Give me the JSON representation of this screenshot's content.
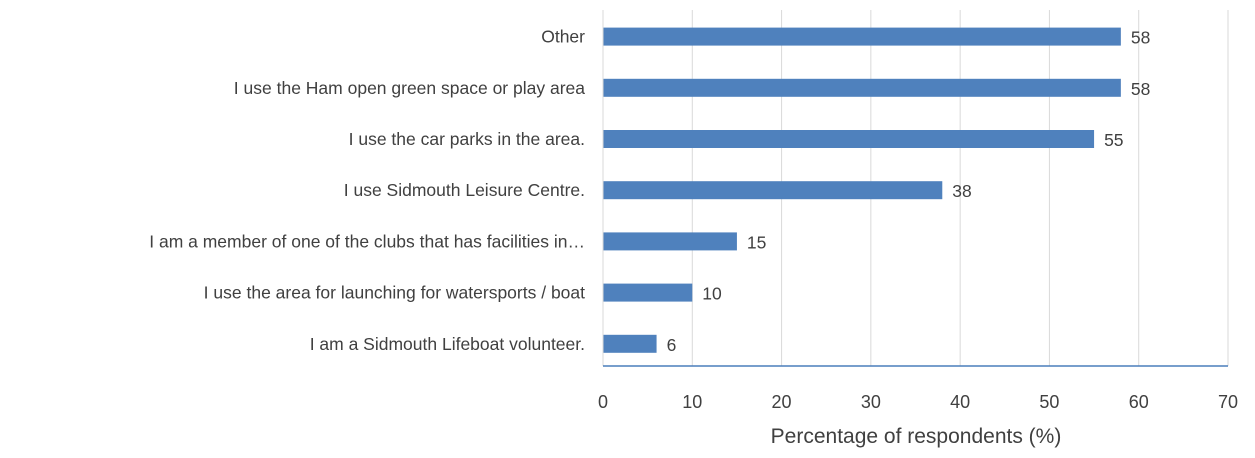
{
  "chart_data": {
    "type": "bar",
    "orientation": "horizontal",
    "categories": [
      "Other",
      "I use the Ham open green space or play area",
      "I use the car parks in the area.",
      "I use Sidmouth Leisure Centre.",
      "I am a member of one of the clubs that has facilities in…",
      "I use the area for launching for watersports / boat",
      "I am a Sidmouth Lifeboat volunteer."
    ],
    "values": [
      58,
      58,
      55,
      38,
      15,
      10,
      6
    ],
    "data_labels": [
      "58",
      "58",
      "55",
      "38",
      "15",
      "10",
      "6"
    ],
    "xlabel": "Percentage of respondents (%)",
    "ylabel": "",
    "title": "",
    "xlim": [
      0,
      70
    ],
    "xticks": [
      0,
      10,
      20,
      30,
      40,
      50,
      60,
      70
    ],
    "xtick_labels": [
      "0",
      "10",
      "20",
      "30",
      "40",
      "50",
      "60",
      "70"
    ],
    "grid": true,
    "legend": "none",
    "colors": {
      "bar": "#4f81bd",
      "grid": "#d9d9d9",
      "axis": "#4a7ebb",
      "text": "#404040"
    }
  }
}
